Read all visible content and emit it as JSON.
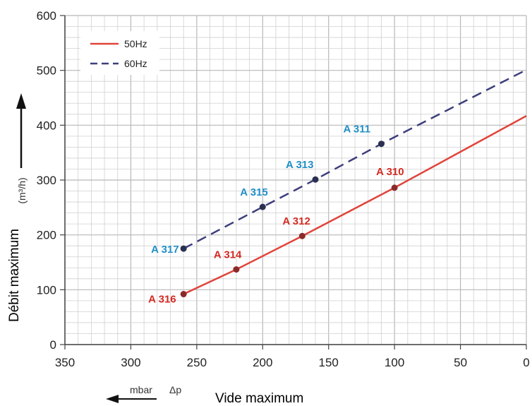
{
  "chart_data": {
    "type": "line",
    "title": "",
    "xlabel": "Vide maximum",
    "xunit": "mbar",
    "xsymbol": "Δp",
    "ylabel": "Débit maximum",
    "yunit": "(m³/h)",
    "xlim": [
      350,
      0
    ],
    "ylim": [
      0,
      600
    ],
    "x_ticks": [
      350,
      300,
      250,
      200,
      150,
      100,
      50,
      0
    ],
    "y_ticks": [
      0,
      100,
      200,
      300,
      400,
      500,
      600
    ],
    "grid": true,
    "legend_position": "top-left",
    "series": [
      {
        "name": "50Hz",
        "style": "solid",
        "color": "#e0443c",
        "label_color": "#d42a22",
        "x": [
          260,
          220,
          170,
          100,
          0
        ],
        "y": [
          92,
          137,
          198,
          286,
          417
        ],
        "points": [
          {
            "x": 260,
            "y": 92,
            "label": "A 316"
          },
          {
            "x": 220,
            "y": 137,
            "label": "A 314"
          },
          {
            "x": 170,
            "y": 198,
            "label": "A 312"
          },
          {
            "x": 100,
            "y": 286,
            "label": "A 310"
          }
        ]
      },
      {
        "name": "60Hz",
        "style": "dashed",
        "color": "#3e3e7c",
        "label_color": "#1f8fc8",
        "x": [
          260,
          200,
          160,
          110,
          0
        ],
        "y": [
          175,
          251,
          301,
          366,
          501
        ],
        "points": [
          {
            "x": 260,
            "y": 175,
            "label": "A 317"
          },
          {
            "x": 200,
            "y": 251,
            "label": "A 315"
          },
          {
            "x": 160,
            "y": 301,
            "label": "A 313"
          },
          {
            "x": 110,
            "y": 366,
            "label": "A 311"
          }
        ]
      }
    ]
  }
}
